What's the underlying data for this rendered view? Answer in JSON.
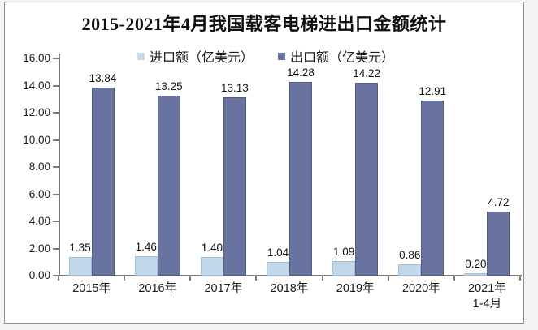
{
  "title": "2015-2021年4月我国载客电梯进出口金额统计",
  "chart_data": {
    "type": "bar",
    "title": "2015-2021年4月我国载客电梯进出口金额统计",
    "categories": [
      "2015年",
      "2016年",
      "2017年",
      "2018年",
      "2019年",
      "2020年",
      "2021年\n1-4月"
    ],
    "series": [
      {
        "name": "进口额（亿美元）",
        "color": "#c3d8e9",
        "values": [
          1.35,
          1.46,
          1.4,
          1.04,
          1.09,
          0.86,
          0.2
        ]
      },
      {
        "name": "出口额（亿美元）",
        "color": "#68749f",
        "values": [
          13.84,
          13.25,
          13.13,
          14.28,
          14.22,
          12.91,
          4.72
        ]
      }
    ],
    "xlabel": "",
    "ylabel": "",
    "ylim": [
      0,
      16
    ],
    "y_tick_step": 2,
    "y_tick_labels": [
      "0.00",
      "2.00",
      "4.00",
      "6.00",
      "8.00",
      "10.00",
      "12.00",
      "14.00",
      "16.00"
    ],
    "grid": false,
    "legend_position": "top",
    "value_labels": true,
    "value_label_format": "0.00"
  },
  "colors": {
    "axis": "#7a7a7a",
    "import_bar": "#c3d8e9",
    "export_bar": "#68749f",
    "text": "#111111",
    "frame_border": "#8e8e8e"
  }
}
